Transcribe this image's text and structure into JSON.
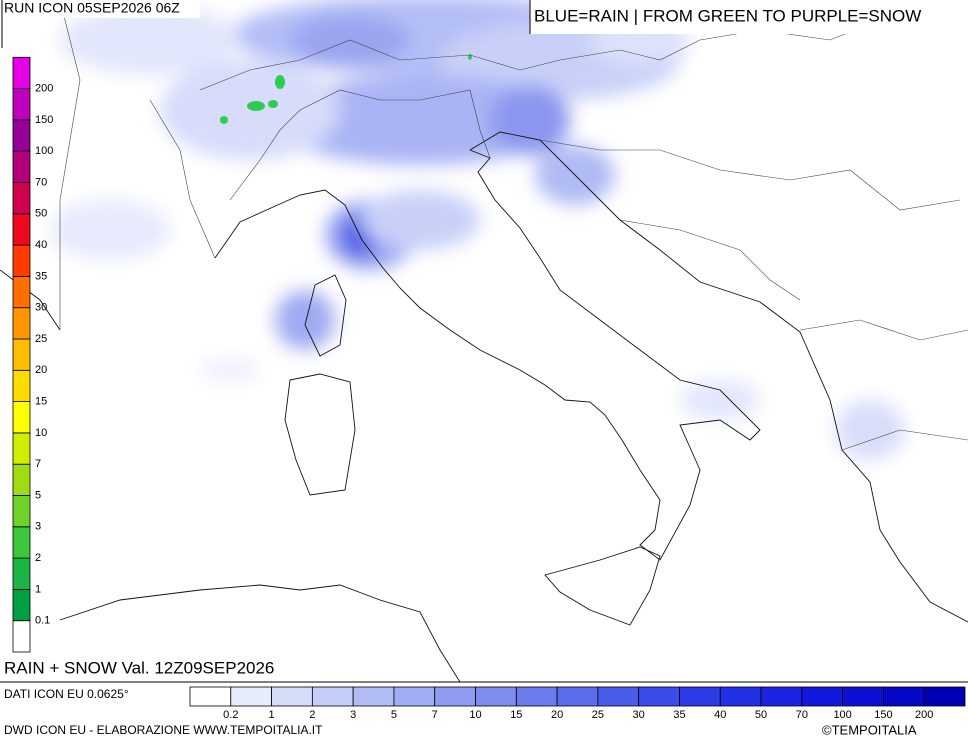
{
  "header": {
    "run": "RUN ICON 05SEP2026 06Z",
    "legend_note": "BLUE=RAIN | FROM GREEN TO PURPLE=SNOW"
  },
  "map": {
    "title": "RAIN + SNOW Val. 12Z09SEP2026"
  },
  "snow_scale": {
    "labels": [
      "0.1",
      "1",
      "2",
      "3",
      "5",
      "7",
      "10",
      "15",
      "20",
      "25",
      "30",
      "35",
      "40",
      "50",
      "70",
      "100",
      "150",
      "200"
    ],
    "colors": [
      "#ffffff",
      "#00a040",
      "#1cb446",
      "#3cc83c",
      "#6ed228",
      "#a0dc14",
      "#d2ee00",
      "#ffff00",
      "#ffdc00",
      "#ffbe00",
      "#ff9600",
      "#ff6e00",
      "#ff3c00",
      "#ee0a1e",
      "#d20050",
      "#b40078",
      "#960096",
      "#be00be",
      "#e600e6"
    ]
  },
  "rain_scale": {
    "labels": [
      "0.2",
      "1",
      "2",
      "3",
      "5",
      "7",
      "10",
      "15",
      "20",
      "25",
      "30",
      "35",
      "40",
      "50",
      "70",
      "100",
      "150",
      "200"
    ],
    "colors": [
      "#ffffff",
      "#e6ecfc",
      "#d4dcfa",
      "#c3cdf8",
      "#b2bdf6",
      "#a0acf4",
      "#8f9cf2",
      "#7e8cf0",
      "#6c7cee",
      "#5b6cec",
      "#4a5ceb",
      "#3c4cea",
      "#2e3ce8",
      "#2230e6",
      "#1a24e2",
      "#1218dc",
      "#0c10d4",
      "#0608c8",
      "#0000b4"
    ]
  },
  "footer": {
    "data_source": "DATI ICON EU 0.0625°",
    "credit": "DWD ICON EU - ELABORAZIONE WWW.TEMPOITALIA.IT",
    "copyright": "©TEMPOITALIA"
  }
}
